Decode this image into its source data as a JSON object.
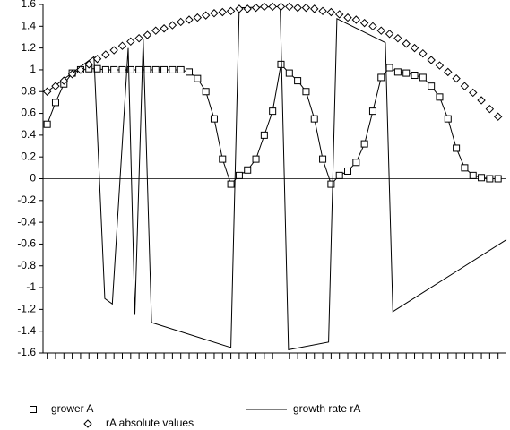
{
  "chart_data": {
    "type": "line",
    "ylim": [
      -1.6,
      1.6
    ],
    "yticks": [
      -1.6,
      -1.4,
      -1.2,
      -1,
      -0.8,
      -0.6,
      -0.4,
      -0.2,
      0,
      0.2,
      0.4,
      0.6,
      0.8,
      1,
      1.2,
      1.4,
      1.6
    ],
    "xlim": [
      -0.5,
      55
    ],
    "xticks": [
      0,
      1,
      2,
      3,
      4,
      5,
      6,
      7,
      8,
      9,
      10,
      11,
      12,
      13,
      14,
      15,
      16,
      17,
      18,
      19,
      20,
      21,
      22,
      23,
      24,
      25,
      26,
      27,
      28,
      29,
      30,
      31,
      32,
      33,
      34,
      35,
      36,
      37,
      38,
      39,
      40,
      41,
      42,
      43,
      44,
      45,
      46,
      47,
      48,
      49,
      50,
      51,
      52,
      53,
      54
    ],
    "zero_line": true,
    "series": [
      {
        "name": "grower A",
        "color": "#000000",
        "marker": "square",
        "line": true,
        "x": [
          0,
          1,
          2,
          3,
          4,
          5,
          6,
          7,
          8,
          9,
          10,
          11,
          12,
          13,
          14,
          15,
          16,
          17,
          18,
          19,
          20,
          21,
          22,
          23,
          24,
          25,
          26,
          27,
          28,
          29,
          30,
          31,
          32,
          33,
          34,
          35,
          36,
          37,
          38,
          39,
          40,
          41,
          42,
          43,
          44,
          45,
          46,
          47,
          48,
          49,
          50,
          51,
          52,
          53,
          54
        ],
        "values": [
          0.5,
          0.7,
          0.87,
          0.97,
          1.0,
          1.01,
          1.01,
          1.0,
          1.0,
          1.0,
          1.0,
          1.0,
          1.0,
          1.0,
          1.0,
          1.0,
          1.0,
          0.98,
          0.92,
          0.8,
          0.55,
          0.18,
          -0.05,
          0.03,
          0.08,
          0.18,
          0.4,
          0.62,
          1.05,
          0.97,
          0.9,
          0.8,
          0.55,
          0.18,
          -0.05,
          0.03,
          0.07,
          0.15,
          0.32,
          0.62,
          0.93,
          1.02,
          0.98,
          0.97,
          0.95,
          0.93,
          0.85,
          0.75,
          0.55,
          0.28,
          0.1,
          0.03,
          0.01,
          0.0,
          0.0
        ]
      },
      {
        "name": "growth rate rA",
        "color": "#000000",
        "marker": "none",
        "line": true,
        "x": [
          0,
          5.6,
          6.9,
          7.8,
          9.7,
          10.5,
          11.5,
          12.5,
          22.0,
          23.0,
          27.9,
          28.9,
          33.7,
          34.7,
          40.5,
          41.4,
          55.0
        ],
        "values": [
          0.8,
          1.12,
          -1.1,
          -1.15,
          1.2,
          -1.25,
          1.28,
          -1.32,
          -1.55,
          1.57,
          1.58,
          -1.57,
          -1.5,
          1.47,
          1.25,
          -1.22,
          -0.56
        ]
      },
      {
        "name": "rA absolute values",
        "color": "#000000",
        "marker": "diamond",
        "line": false,
        "x": [
          0,
          1,
          2,
          3,
          4,
          5,
          6,
          7,
          8,
          9,
          10,
          11,
          12,
          13,
          14,
          15,
          16,
          17,
          18,
          19,
          20,
          21,
          22,
          23,
          24,
          25,
          26,
          27,
          28,
          29,
          30,
          31,
          32,
          33,
          34,
          35,
          36,
          37,
          38,
          39,
          40,
          41,
          42,
          43,
          44,
          45,
          46,
          47,
          48,
          49,
          50,
          51,
          52,
          53,
          54
        ],
        "values": [
          0.8,
          0.85,
          0.9,
          0.96,
          1.0,
          1.05,
          1.1,
          1.14,
          1.18,
          1.22,
          1.26,
          1.29,
          1.32,
          1.36,
          1.38,
          1.41,
          1.44,
          1.46,
          1.48,
          1.5,
          1.52,
          1.53,
          1.54,
          1.56,
          1.56,
          1.57,
          1.58,
          1.58,
          1.58,
          1.58,
          1.57,
          1.57,
          1.56,
          1.54,
          1.53,
          1.51,
          1.48,
          1.46,
          1.43,
          1.4,
          1.36,
          1.33,
          1.29,
          1.24,
          1.2,
          1.15,
          1.09,
          1.04,
          0.98,
          0.92,
          0.85,
          0.79,
          0.72,
          0.64,
          0.57
        ]
      }
    ]
  }
}
